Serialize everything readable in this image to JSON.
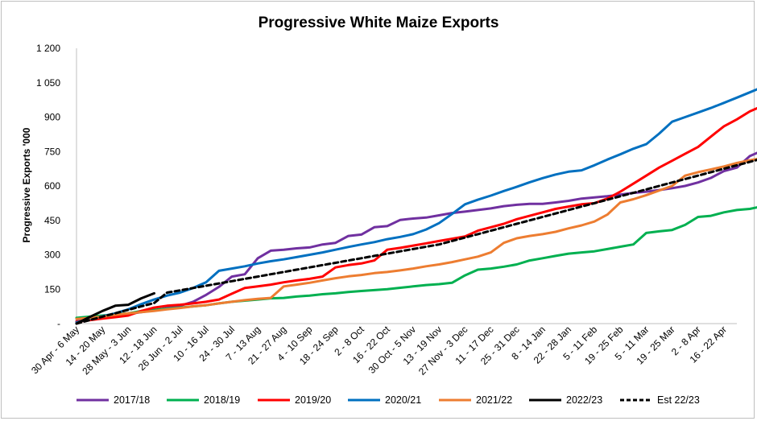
{
  "chart_data": {
    "type": "line",
    "title": "Progressive White Maize Exports",
    "xlabel": "",
    "ylabel": "Progressive Exports '000",
    "ylim": [
      0,
      1200
    ],
    "y_ticks": [
      0,
      150,
      300,
      450,
      600,
      750,
      900,
      1050,
      1200
    ],
    "y_tick_labels": [
      "-",
      "150",
      "300",
      "450",
      "600",
      "750",
      "900",
      "1 050",
      "1 200"
    ],
    "grid": false,
    "legend_position": "bottom",
    "x_tick_labels": [
      "30 Apr - 6 May",
      "14 - 20 May",
      "28 May - 3 Jun",
      "12 - 18 Jun",
      "26 Jun - 2 Jul",
      "10 - 16 Jul",
      "24 - 30 Jul",
      "7 - 13 Aug",
      "21 - 27 Aug",
      "4 - 10 Sep",
      "18 - 24 Sep",
      "2 - 8 Oct",
      "16 - 22 Oct",
      "30 Oct - 5 Nov",
      "13 - 19 Nov",
      "27 Nov - 3 Dec",
      "11 - 17 Dec",
      "25 - 31 Dec",
      "8 - 14 Jan",
      "22 - 28 Jan",
      "5 - 11 Feb",
      "19 - 25 Feb",
      "5 - 11 Mar",
      "19 - 25 Mar",
      "2 - 8 Apr",
      "16 - 22 Apr"
    ],
    "num_weeks": 52,
    "series": [
      {
        "name": "2017/18",
        "color": "#7030a0",
        "dash": "",
        "values": [
          10,
          18,
          25,
          32,
          42,
          50,
          58,
          68,
          78,
          95,
          125,
          160,
          205,
          215,
          285,
          318,
          322,
          328,
          332,
          345,
          352,
          382,
          388,
          420,
          425,
          452,
          458,
          462,
          472,
          482,
          488,
          495,
          502,
          512,
          518,
          522,
          522,
          528,
          535,
          545,
          550,
          555,
          562,
          570,
          575,
          582,
          590,
          600,
          615,
          635,
          665,
          680,
          730,
          755,
          765,
          770
        ]
      },
      {
        "name": "2018/19",
        "color": "#00b050",
        "dash": "",
        "values": [
          25,
          30,
          35,
          40,
          45,
          55,
          60,
          65,
          70,
          75,
          80,
          88,
          95,
          100,
          105,
          110,
          112,
          118,
          122,
          128,
          132,
          138,
          142,
          146,
          150,
          156,
          162,
          168,
          172,
          178,
          210,
          235,
          240,
          248,
          258,
          275,
          285,
          295,
          305,
          310,
          315,
          325,
          335,
          345,
          395,
          402,
          408,
          430,
          465,
          470,
          485,
          495,
          500,
          512,
          522,
          530,
          538
        ]
      },
      {
        "name": "2019/20",
        "color": "#ff0000",
        "dash": "",
        "values": [
          8,
          15,
          22,
          28,
          35,
          55,
          70,
          78,
          82,
          88,
          95,
          105,
          130,
          155,
          162,
          170,
          180,
          188,
          195,
          205,
          245,
          255,
          262,
          275,
          322,
          330,
          340,
          350,
          360,
          370,
          380,
          405,
          420,
          435,
          455,
          470,
          485,
          500,
          510,
          520,
          525,
          545,
          575,
          610,
          645,
          680,
          710,
          740,
          770,
          815,
          860,
          890,
          925,
          950,
          970,
          990,
          1035
        ]
      },
      {
        "name": "2020/21",
        "color": "#0070c0",
        "dash": "",
        "values": [
          5,
          20,
          32,
          45,
          62,
          85,
          105,
          122,
          135,
          155,
          180,
          230,
          240,
          250,
          262,
          272,
          280,
          290,
          300,
          310,
          322,
          334,
          345,
          355,
          368,
          378,
          390,
          410,
          438,
          478,
          520,
          540,
          558,
          578,
          596,
          616,
          634,
          650,
          662,
          668,
          690,
          715,
          738,
          762,
          782,
          828,
          880,
          900,
          920,
          940,
          962,
          985,
          1008,
          1032,
          1062,
          1088,
          1108
        ]
      },
      {
        "name": "2021/22",
        "color": "#ed7d31",
        "dash": "",
        "values": [
          20,
          25,
          30,
          38,
          45,
          50,
          55,
          62,
          68,
          75,
          80,
          88,
          95,
          102,
          108,
          112,
          162,
          170,
          178,
          188,
          198,
          206,
          212,
          220,
          225,
          232,
          240,
          250,
          258,
          268,
          280,
          292,
          310,
          352,
          372,
          382,
          390,
          400,
          415,
          428,
          445,
          475,
          528,
          542,
          560,
          580,
          600,
          645,
          660,
          672,
          685,
          700,
          712,
          722,
          735
        ]
      },
      {
        "name": "2022/23",
        "color": "#000000",
        "dash": "",
        "values": [
          0,
          28,
          55,
          78,
          82,
          110,
          132
        ]
      },
      {
        "name": "Est 22/23",
        "color": "#000000",
        "dash": "6,4",
        "values": [
          0,
          15,
          30,
          45,
          60,
          75,
          90,
          135,
          145,
          155,
          165,
          175,
          185,
          195,
          205,
          215,
          225,
          235,
          245,
          255,
          265,
          275,
          285,
          295,
          305,
          315,
          325,
          335,
          345,
          360,
          375,
          390,
          405,
          420,
          435,
          450,
          465,
          480,
          495,
          510,
          525,
          540,
          555,
          570,
          585,
          600,
          615,
          630,
          645,
          660,
          675,
          690,
          705,
          720,
          735,
          750,
          765,
          778
        ]
      }
    ]
  }
}
